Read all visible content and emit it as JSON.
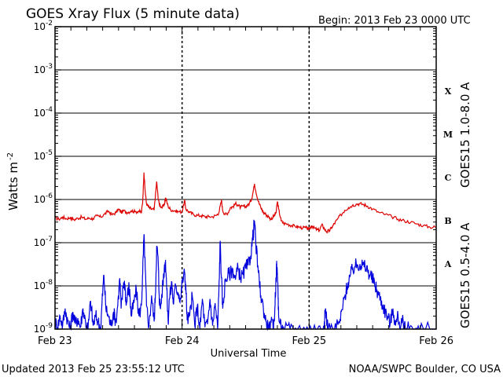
{
  "chart_data": {
    "type": "line",
    "title": "GOES Xray Flux (5 minute data)",
    "begin": "Begin:  2013 Feb 23 0000 UTC",
    "ylabel_base": "Watts m",
    "ylabel_exp": "-2",
    "xlabel": "Universal Time",
    "yscale": "log",
    "ylim": [
      1e-09,
      0.01
    ],
    "x_range_days": [
      0,
      3
    ],
    "grid": true,
    "y_ticks": [
      {
        "base": "10",
        "exp": "-2",
        "value": 0.01
      },
      {
        "base": "10",
        "exp": "-3",
        "value": 0.001
      },
      {
        "base": "10",
        "exp": "-4",
        "value": 0.0001
      },
      {
        "base": "10",
        "exp": "-5",
        "value": 1e-05
      },
      {
        "base": "10",
        "exp": "-6",
        "value": 1e-06
      },
      {
        "base": "10",
        "exp": "-7",
        "value": 1e-07
      },
      {
        "base": "10",
        "exp": "-8",
        "value": 1e-08
      },
      {
        "base": "10",
        "exp": "-9",
        "value": 1e-09
      }
    ],
    "x_ticks": [
      {
        "label": "Feb 23",
        "day": 0
      },
      {
        "label": "Feb 24",
        "day": 1
      },
      {
        "label": "Feb 25",
        "day": 2
      },
      {
        "label": "Feb 26",
        "day": 3
      }
    ],
    "flare_classes": [
      {
        "label": "X",
        "value": 0.00032
      },
      {
        "label": "M",
        "value": 3.2e-05
      },
      {
        "label": "C",
        "value": 3.2e-06
      },
      {
        "label": "B",
        "value": 3.2e-07
      },
      {
        "label": "A",
        "value": 3.2e-08
      }
    ],
    "series": [
      {
        "name": "GOES15 1.0-8.0 A",
        "color": "#dd0000",
        "points": [
          [
            0.0,
            3.8e-07
          ],
          [
            0.03,
            3.5e-07
          ],
          [
            0.06,
            3.9e-07
          ],
          [
            0.09,
            3.6e-07
          ],
          [
            0.12,
            3.8e-07
          ],
          [
            0.15,
            3.4e-07
          ],
          [
            0.18,
            3.7e-07
          ],
          [
            0.21,
            3.9e-07
          ],
          [
            0.24,
            3.5e-07
          ],
          [
            0.27,
            3.7e-07
          ],
          [
            0.3,
            3.6e-07
          ],
          [
            0.33,
            4.2e-07
          ],
          [
            0.36,
            3.9e-07
          ],
          [
            0.39,
            4.6e-07
          ],
          [
            0.42,
            5.4e-07
          ],
          [
            0.45,
            4.4e-07
          ],
          [
            0.48,
            5e-07
          ],
          [
            0.5,
            6e-07
          ],
          [
            0.52,
            5e-07
          ],
          [
            0.54,
            5.5e-07
          ],
          [
            0.57,
            5e-07
          ],
          [
            0.6,
            5.5e-07
          ],
          [
            0.63,
            5.2e-07
          ],
          [
            0.66,
            5.4e-07
          ],
          [
            0.68,
            5e-07
          ],
          [
            0.69,
            9e-07
          ],
          [
            0.7,
            4.2e-06
          ],
          [
            0.71,
            1.5e-06
          ],
          [
            0.72,
            8e-07
          ],
          [
            0.74,
            6.5e-07
          ],
          [
            0.76,
            6e-07
          ],
          [
            0.78,
            5.8e-07
          ],
          [
            0.79,
            1.2e-06
          ],
          [
            0.8,
            2.6e-06
          ],
          [
            0.81,
            1.2e-06
          ],
          [
            0.82,
            8e-07
          ],
          [
            0.84,
            6.5e-07
          ],
          [
            0.86,
            7.5e-07
          ],
          [
            0.87,
            1.1e-06
          ],
          [
            0.89,
            7e-07
          ],
          [
            0.91,
            5.8e-07
          ],
          [
            0.94,
            5.5e-07
          ],
          [
            0.97,
            5.2e-07
          ],
          [
            1.0,
            5.2e-07
          ],
          [
            1.02,
            9.5e-07
          ],
          [
            1.03,
            6e-07
          ],
          [
            1.06,
            5e-07
          ],
          [
            1.09,
            4.5e-07
          ],
          [
            1.12,
            4.3e-07
          ],
          [
            1.15,
            4.2e-07
          ],
          [
            1.18,
            4e-07
          ],
          [
            1.21,
            4e-07
          ],
          [
            1.24,
            4e-07
          ],
          [
            1.27,
            4.3e-07
          ],
          [
            1.29,
            5e-07
          ],
          [
            1.31,
            9.5e-07
          ],
          [
            1.32,
            5.5e-07
          ],
          [
            1.34,
            4.5e-07
          ],
          [
            1.36,
            4.8e-07
          ],
          [
            1.38,
            6.5e-07
          ],
          [
            1.4,
            6.8e-07
          ],
          [
            1.42,
            8e-07
          ],
          [
            1.44,
            7.5e-07
          ],
          [
            1.46,
            6.5e-07
          ],
          [
            1.48,
            7e-07
          ],
          [
            1.5,
            6.8e-07
          ],
          [
            1.52,
            7.5e-07
          ],
          [
            1.54,
            9e-07
          ],
          [
            1.555,
            1.3e-06
          ],
          [
            1.57,
            2.3e-06
          ],
          [
            1.58,
            1.6e-06
          ],
          [
            1.6,
            9e-07
          ],
          [
            1.62,
            6.5e-07
          ],
          [
            1.64,
            5e-07
          ],
          [
            1.66,
            4.5e-07
          ],
          [
            1.68,
            4e-07
          ],
          [
            1.7,
            3.5e-07
          ],
          [
            1.72,
            4e-07
          ],
          [
            1.74,
            5e-07
          ],
          [
            1.75,
            9e-07
          ],
          [
            1.76,
            6e-07
          ],
          [
            1.78,
            3.2e-07
          ],
          [
            1.8,
            2.8e-07
          ],
          [
            1.83,
            2.7e-07
          ],
          [
            1.86,
            2.5e-07
          ],
          [
            1.89,
            2.4e-07
          ],
          [
            1.92,
            2.3e-07
          ],
          [
            1.95,
            2.2e-07
          ],
          [
            1.98,
            2.2e-07
          ],
          [
            2.0,
            2e-07
          ],
          [
            2.02,
            2.5e-07
          ],
          [
            2.04,
            2.2e-07
          ],
          [
            2.06,
            2e-07
          ],
          [
            2.08,
            1.9e-07
          ],
          [
            2.1,
            2.6e-07
          ],
          [
            2.12,
            2.1e-07
          ],
          [
            2.14,
            1.8e-07
          ],
          [
            2.16,
            1.9e-07
          ],
          [
            2.18,
            2.3e-07
          ],
          [
            2.2,
            2.8e-07
          ],
          [
            2.22,
            3.4e-07
          ],
          [
            2.25,
            4.4e-07
          ],
          [
            2.28,
            5.6e-07
          ],
          [
            2.31,
            6.5e-07
          ],
          [
            2.34,
            7.3e-07
          ],
          [
            2.37,
            7.8e-07
          ],
          [
            2.4,
            8e-07
          ],
          [
            2.43,
            7.6e-07
          ],
          [
            2.46,
            7e-07
          ],
          [
            2.5,
            6e-07
          ],
          [
            2.55,
            5e-07
          ],
          [
            2.6,
            4.5e-07
          ],
          [
            2.65,
            4e-07
          ],
          [
            2.7,
            3.5e-07
          ],
          [
            2.75,
            3.2e-07
          ],
          [
            2.8,
            3e-07
          ],
          [
            2.85,
            2.7e-07
          ],
          [
            2.9,
            2.5e-07
          ],
          [
            2.95,
            2.3e-07
          ],
          [
            3.0,
            2.3e-07
          ]
        ]
      },
      {
        "name": "GOES15 0.5-4.0 A",
        "color": "#0000dd",
        "points": [
          [
            0.0,
            1.5e-09
          ],
          [
            0.02,
            1.1e-09
          ],
          [
            0.04,
            2e-09
          ],
          [
            0.06,
            1.2e-09
          ],
          [
            0.08,
            3e-09
          ],
          [
            0.1,
            1.5e-09
          ],
          [
            0.12,
            1e-09
          ],
          [
            0.14,
            2.5e-09
          ],
          [
            0.16,
            1.3e-09
          ],
          [
            0.18,
            1.8e-09
          ],
          [
            0.2,
            1.1e-09
          ],
          [
            0.22,
            3e-09
          ],
          [
            0.24,
            1.5e-09
          ],
          [
            0.26,
            1e-09
          ],
          [
            0.28,
            4.5e-09
          ],
          [
            0.3,
            1.2e-09
          ],
          [
            0.32,
            2e-09
          ],
          [
            0.34,
            1.5e-09
          ],
          [
            0.36,
            1e-09
          ],
          [
            0.37,
            4e-09
          ],
          [
            0.385,
            1.8e-08
          ],
          [
            0.4,
            3e-09
          ],
          [
            0.42,
            2e-09
          ],
          [
            0.44,
            1.2e-09
          ],
          [
            0.46,
            2.5e-09
          ],
          [
            0.48,
            1.5e-09
          ],
          [
            0.5,
            6e-09
          ],
          [
            0.51,
            1.5e-08
          ],
          [
            0.52,
            3e-09
          ],
          [
            0.54,
            1.2e-08
          ],
          [
            0.55,
            1.1e-08
          ],
          [
            0.56,
            3.5e-09
          ],
          [
            0.58,
            1e-08
          ],
          [
            0.59,
            6e-09
          ],
          [
            0.6,
            2e-09
          ],
          [
            0.62,
            4e-09
          ],
          [
            0.64,
            8e-09
          ],
          [
            0.66,
            2e-09
          ],
          [
            0.68,
            3.5e-09
          ],
          [
            0.69,
            2e-08
          ],
          [
            0.7,
            1.5e-07
          ],
          [
            0.71,
            2.5e-08
          ],
          [
            0.72,
            3.5e-09
          ],
          [
            0.74,
            1.2e-09
          ],
          [
            0.76,
            6e-09
          ],
          [
            0.78,
            1.5e-09
          ],
          [
            0.79,
            6e-09
          ],
          [
            0.8,
            8e-08
          ],
          [
            0.81,
            5e-08
          ],
          [
            0.82,
            6e-09
          ],
          [
            0.83,
            3e-09
          ],
          [
            0.85,
            1.2e-08
          ],
          [
            0.86,
            2.5e-08
          ],
          [
            0.87,
            4e-08
          ],
          [
            0.88,
            8e-09
          ],
          [
            0.89,
            1.5e-09
          ],
          [
            0.9,
            5e-09
          ],
          [
            0.92,
            1.2e-08
          ],
          [
            0.93,
            4e-09
          ],
          [
            0.95,
            1e-08
          ],
          [
            0.97,
            7e-09
          ],
          [
            0.99,
            5e-09
          ],
          [
            1.0,
            1.2e-08
          ],
          [
            1.02,
            2e-08
          ],
          [
            1.03,
            9e-09
          ],
          [
            1.04,
            1.6e-09
          ],
          [
            1.06,
            2e-09
          ],
          [
            1.08,
            6e-09
          ],
          [
            1.1,
            1.2e-09
          ],
          [
            1.12,
            3.5e-09
          ],
          [
            1.14,
            1e-09
          ],
          [
            1.16,
            5e-09
          ],
          [
            1.18,
            1.1e-09
          ],
          [
            1.2,
            1.3e-09
          ],
          [
            1.22,
            5e-09
          ],
          [
            1.24,
            1.2e-09
          ],
          [
            1.26,
            4e-09
          ],
          [
            1.28,
            1e-09
          ],
          [
            1.29,
            8e-09
          ],
          [
            1.3,
            1.1e-07
          ],
          [
            1.31,
            1.5e-08
          ],
          [
            1.32,
            3e-09
          ],
          [
            1.34,
            1.3e-08
          ],
          [
            1.36,
            1.8e-08
          ],
          [
            1.38,
            2e-08
          ],
          [
            1.4,
            2.4e-08
          ],
          [
            1.42,
            1.4e-08
          ],
          [
            1.44,
            2.6e-08
          ],
          [
            1.46,
            1.6e-08
          ],
          [
            1.48,
            1.8e-08
          ],
          [
            1.5,
            2.6e-08
          ],
          [
            1.52,
            3e-08
          ],
          [
            1.54,
            5e-08
          ],
          [
            1.555,
            1.2e-07
          ],
          [
            1.57,
            3.2e-07
          ],
          [
            1.58,
            1e-07
          ],
          [
            1.6,
            2e-08
          ],
          [
            1.62,
            6e-09
          ],
          [
            1.64,
            3e-09
          ],
          [
            1.66,
            1.5e-09
          ],
          [
            1.68,
            1e-09
          ],
          [
            1.7,
            1.4e-09
          ],
          [
            1.72,
            1e-09
          ],
          [
            1.73,
            3e-09
          ],
          [
            1.74,
            1.6e-08
          ],
          [
            1.745,
            3.2e-08
          ],
          [
            1.755,
            8e-09
          ],
          [
            1.76,
            2e-09
          ],
          [
            1.78,
            1e-09
          ],
          [
            1.8,
            1e-09
          ],
          [
            1.85,
            1e-09
          ],
          [
            1.9,
            1e-09
          ],
          [
            1.95,
            1e-09
          ],
          [
            2.0,
            1e-09
          ],
          [
            2.05,
            1e-09
          ],
          [
            2.1,
            1e-09
          ],
          [
            2.12,
            1.5e-09
          ],
          [
            2.13,
            3e-09
          ],
          [
            2.14,
            1.5e-09
          ],
          [
            2.15,
            1e-09
          ],
          [
            2.2,
            1e-09
          ],
          [
            2.24,
            1.4e-09
          ],
          [
            2.26,
            2.8e-09
          ],
          [
            2.28,
            5.5e-09
          ],
          [
            2.3,
            1e-08
          ],
          [
            2.32,
            1.6e-08
          ],
          [
            2.34,
            2.3e-08
          ],
          [
            2.36,
            2.8e-08
          ],
          [
            2.38,
            3.1e-08
          ],
          [
            2.4,
            3.2e-08
          ],
          [
            2.42,
            3e-08
          ],
          [
            2.44,
            2.7e-08
          ],
          [
            2.46,
            2.3e-08
          ],
          [
            2.48,
            1.8e-08
          ],
          [
            2.5,
            1.4e-08
          ],
          [
            2.52,
            1e-08
          ],
          [
            2.54,
            7e-09
          ],
          [
            2.56,
            5e-09
          ],
          [
            2.58,
            3.5e-09
          ],
          [
            2.6,
            2.5e-09
          ],
          [
            2.62,
            1.8e-09
          ],
          [
            2.64,
            1.4e-09
          ],
          [
            2.66,
            3e-09
          ],
          [
            2.68,
            1.2e-09
          ],
          [
            2.7,
            2e-09
          ],
          [
            2.72,
            1.1e-09
          ],
          [
            2.74,
            1.5e-09
          ],
          [
            2.76,
            1e-09
          ],
          [
            2.8,
            1.2e-09
          ],
          [
            2.85,
            1e-09
          ],
          [
            2.9,
            1e-09
          ],
          [
            3.0,
            1e-09
          ]
        ]
      }
    ]
  },
  "footer": {
    "updated": "Updated 2013 Feb 25 23:55:12 UTC",
    "credit": "NOAA/SWPC Boulder, CO USA"
  }
}
